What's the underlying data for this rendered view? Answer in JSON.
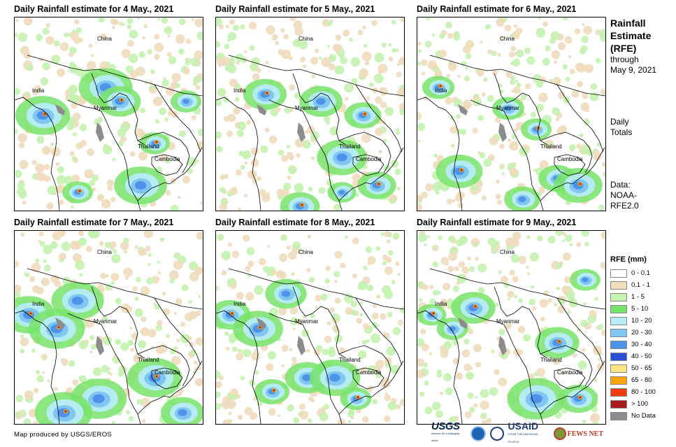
{
  "panels": [
    {
      "title": "Daily Rainfall estimate for 4 May., 2021",
      "labels": {
        "china": "China",
        "india": "India",
        "myanmar": "Myanmar",
        "thailand": "Thailand",
        "cambodia": "Cambodia"
      }
    },
    {
      "title": "Daily Rainfall estimate for 5 May., 2021",
      "labels": {
        "china": "China",
        "india": "India",
        "myanmar": "Myanmar",
        "thailand": "Thailand",
        "cambodia": "Cambodia"
      }
    },
    {
      "title": "Daily Rainfall estimate for 6 May., 2021",
      "labels": {
        "china": "China",
        "india": "India",
        "myanmar": "Myanmar",
        "thailand": "Thailand",
        "cambodia": "Cambodia"
      }
    },
    {
      "title": "Daily Rainfall estimate for 7 May., 2021",
      "labels": {
        "china": "China",
        "india": "India",
        "myanmar": "Myanmar",
        "thailand": "Thailand",
        "cambodia": "Cambodia"
      }
    },
    {
      "title": "Daily Rainfall estimate for 8 May., 2021",
      "labels": {
        "china": "China",
        "india": "India",
        "myanmar": "Myanmar",
        "thailand": "Thailand",
        "cambodia": "Cambodia"
      }
    },
    {
      "title": "Daily Rainfall estimate for 9 May., 2021",
      "labels": {
        "china": "China",
        "india": "India",
        "myanmar": "Myanmar",
        "thailand": "Thailand",
        "cambodia": "Cambodia"
      }
    }
  ],
  "sidebar": {
    "title_line1": "Rainfall",
    "title_line2": "Estimate",
    "title_line3": "(RFE)",
    "through": "through",
    "through_date": "May 9, 2021",
    "totals_line1": "Daily",
    "totals_line2": "Totals",
    "data_line1": "Data:",
    "data_line2": "NOAA-",
    "data_line3": "RFE2.0"
  },
  "legend": {
    "title": "RFE (mm)",
    "items": [
      {
        "label": "0 - 0.1",
        "color": "#ffffff"
      },
      {
        "label": "0.1 - 1",
        "color": "#f0dcbc"
      },
      {
        "label": "1 - 5",
        "color": "#c4f2b0"
      },
      {
        "label": "5 - 10",
        "color": "#78e36b"
      },
      {
        "label": "10 - 20",
        "color": "#b7ecf7"
      },
      {
        "label": "20 - 30",
        "color": "#80c6f2"
      },
      {
        "label": "30 - 40",
        "color": "#4f92ea"
      },
      {
        "label": "40 - 50",
        "color": "#2a4fd6"
      },
      {
        "label": "50 - 65",
        "color": "#fbe481"
      },
      {
        "label": "65 - 80",
        "color": "#f7a300"
      },
      {
        "label": "80 - 100",
        "color": "#f23c10"
      },
      {
        "label": "> 100",
        "color": "#a61b1b"
      },
      {
        "label": "No Data",
        "color": "#8c8c8c"
      }
    ]
  },
  "footer": {
    "credit": "Map produced by USGS/EROS",
    "logo_usgs": "USGS",
    "logo_usgs_tag": "science for a changing world",
    "logo_usaid": "USAID",
    "logo_usaid_tag": "FROM THE AMERICAN PEOPLE",
    "logo_fews": "FEWS NET"
  }
}
